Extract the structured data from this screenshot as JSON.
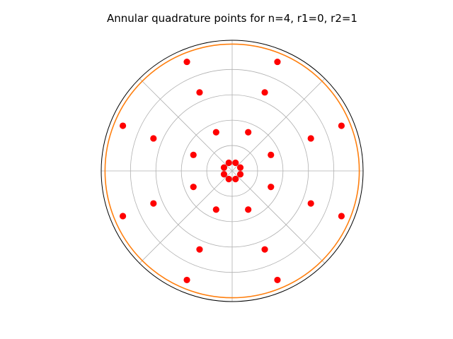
{
  "chart_data": {
    "type": "scatter",
    "projection": "polar",
    "title": "Annular quadrature points for n=4, r1=0, r2=1",
    "rlim": [
      0,
      1.03
    ],
    "radial_gridlines": [
      0.2,
      0.4,
      0.6,
      0.8,
      1.0
    ],
    "angular_gridlines_deg": [
      0,
      45,
      90,
      135,
      180,
      225,
      270,
      315
    ],
    "tick_labels_visible": false,
    "grid": true,
    "legend": "none",
    "colors": {
      "points": "#ff0000",
      "outer_circle": "#ff7f0e",
      "grid": "#b0b0b0",
      "frame": "#000000"
    },
    "series": [
      {
        "kind": "points",
        "radii": [
          0.0694,
          0.33,
          0.67,
          0.9306
        ],
        "angles_deg": [
          22.5,
          67.5,
          112.5,
          157.5,
          202.5,
          247.5,
          292.5,
          337.5
        ]
      },
      {
        "kind": "circle",
        "r": 1.0
      }
    ]
  }
}
